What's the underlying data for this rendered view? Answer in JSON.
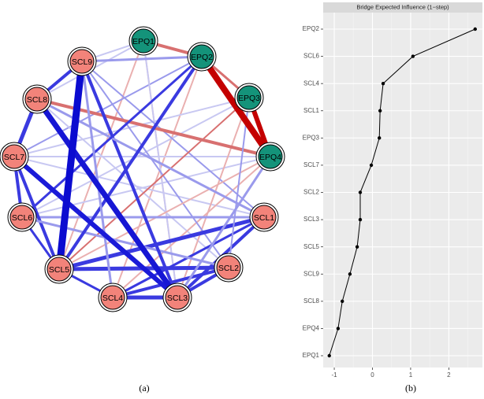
{
  "chart_data": [
    {
      "type": "network",
      "caption": "(a)",
      "nodes": [
        {
          "label": "EPQ1",
          "color": "#14937a"
        },
        {
          "label": "EPQ2",
          "color": "#14937a"
        },
        {
          "label": "EPQ3",
          "color": "#14937a"
        },
        {
          "label": "EPQ4",
          "color": "#14937a"
        },
        {
          "label": "SCL1",
          "color": "#f2837a"
        },
        {
          "label": "SCL2",
          "color": "#f2837a"
        },
        {
          "label": "SCL3",
          "color": "#f2837a"
        },
        {
          "label": "SCL4",
          "color": "#f2837a"
        },
        {
          "label": "SCL5",
          "color": "#f2837a"
        },
        {
          "label": "SCL6",
          "color": "#f2837a"
        },
        {
          "label": "SCL7",
          "color": "#f2837a"
        },
        {
          "label": "SCL8",
          "color": "#f2837a"
        },
        {
          "label": "SCL9",
          "color": "#f2837a"
        }
      ]
    },
    {
      "type": "dot-line",
      "title": "Bridge Expected Influence (1−step)",
      "caption": "(b)",
      "categories": [
        "EPQ2",
        "SCL6",
        "SCL4",
        "SCL1",
        "EPQ3",
        "SCL7",
        "SCL2",
        "SCL3",
        "SCL5",
        "SCL9",
        "SCL8",
        "EPQ4",
        "EPQ1"
      ],
      "values": [
        2.69,
        1.06,
        0.28,
        0.2,
        0.18,
        -0.03,
        -0.32,
        -0.32,
        -0.4,
        -0.59,
        -0.79,
        -0.9,
        -1.13
      ],
      "color": "#000000",
      "xlim": [
        -1.29,
        2.88
      ],
      "xticks": [
        -1,
        0,
        1,
        2
      ],
      "grid": true
    }
  ]
}
